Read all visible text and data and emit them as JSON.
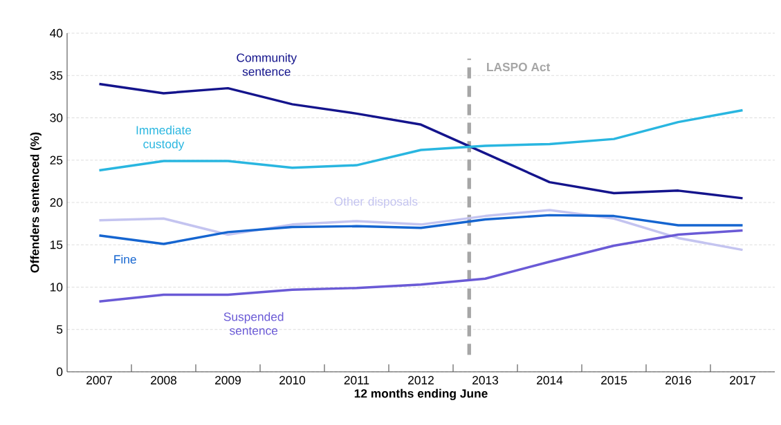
{
  "chart_data": {
    "type": "line",
    "xlabel": "12 months ending June",
    "ylabel": "Offenders sentenced (%)",
    "x": [
      2007,
      2008,
      2009,
      2010,
      2011,
      2012,
      2013,
      2014,
      2015,
      2016,
      2017
    ],
    "xlim": [
      2006.5,
      2017.5
    ],
    "xticks": [
      2007,
      2008,
      2009,
      2010,
      2011,
      2012,
      2013,
      2014,
      2015,
      2016,
      2017
    ],
    "ylim": [
      0,
      40
    ],
    "yticks": [
      0,
      5,
      10,
      15,
      20,
      25,
      30,
      35,
      40
    ],
    "grid": "y",
    "series": [
      {
        "name": "Community sentence",
        "color": "#14148c",
        "values": [
          34.0,
          32.9,
          33.5,
          31.6,
          30.5,
          29.2,
          25.8,
          22.4,
          21.1,
          21.4,
          20.5
        ]
      },
      {
        "name": "Immediate custody",
        "color": "#29b6e0",
        "values": [
          23.8,
          24.9,
          24.9,
          24.1,
          24.4,
          26.2,
          26.7,
          26.9,
          27.5,
          29.5,
          30.9
        ]
      },
      {
        "name": "Other disposals",
        "color": "#c4c4f0",
        "values": [
          17.9,
          18.1,
          16.2,
          17.4,
          17.8,
          17.4,
          18.4,
          19.1,
          18.1,
          15.8,
          14.4
        ]
      },
      {
        "name": "Fine",
        "color": "#1565d0",
        "values": [
          16.1,
          15.1,
          16.5,
          17.1,
          17.2,
          17.0,
          18.0,
          18.5,
          18.4,
          17.3,
          17.3
        ]
      },
      {
        "name": "Suspended sentence",
        "color": "#6a5ad6",
        "values": [
          8.3,
          9.1,
          9.1,
          9.7,
          9.9,
          10.3,
          11.0,
          13.0,
          14.9,
          16.2,
          16.7
        ]
      }
    ],
    "ref_lines": [
      {
        "axis": "x",
        "value": 2012.75,
        "label": "LASPO Act",
        "color": "#a6a6a6",
        "line_style": "dashed"
      }
    ]
  }
}
